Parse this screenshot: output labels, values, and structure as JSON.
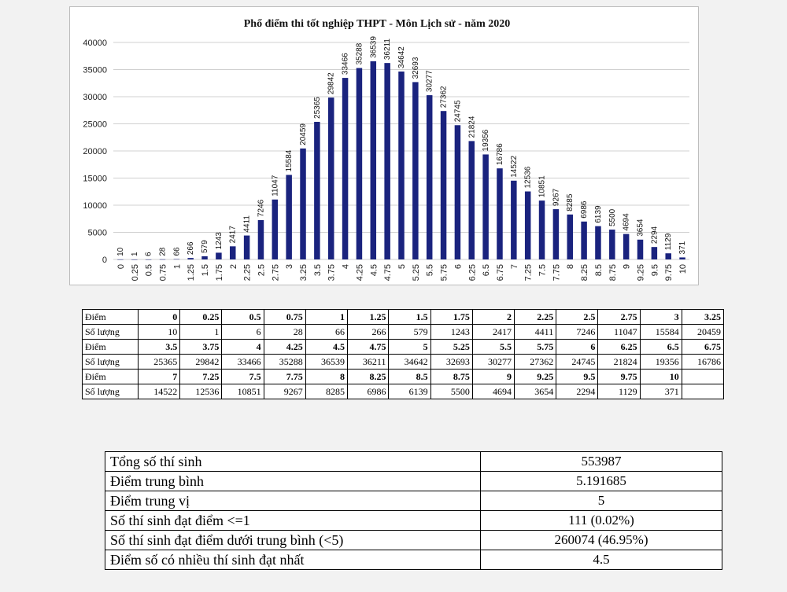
{
  "chart_data": {
    "type": "bar",
    "title": "Phổ điểm thi tốt nghiệp THPT - Môn Lịch sử - năm 2020",
    "categories": [
      "0",
      "0.25",
      "0.5",
      "0.75",
      "1",
      "1.25",
      "1.5",
      "1.75",
      "2",
      "2.25",
      "2.5",
      "2.75",
      "3",
      "3.25",
      "3.5",
      "3.75",
      "4",
      "4.25",
      "4.5",
      "4.75",
      "5",
      "5.25",
      "5.5",
      "5.75",
      "6",
      "6.25",
      "6.5",
      "6.75",
      "7",
      "7.25",
      "7.5",
      "7.75",
      "8",
      "8.25",
      "8.5",
      "8.75",
      "9",
      "9.25",
      "9.5",
      "9.75",
      "10"
    ],
    "values": [
      10,
      1,
      6,
      28,
      66,
      266,
      579,
      1243,
      2417,
      4411,
      7246,
      11047,
      15584,
      20459,
      25365,
      29842,
      33466,
      35288,
      36539,
      36211,
      34642,
      32693,
      30277,
      27362,
      24745,
      21824,
      19356,
      16786,
      14522,
      12536,
      10851,
      9267,
      8285,
      6986,
      6139,
      5500,
      4694,
      3654,
      2294,
      1129,
      371
    ],
    "ylim": [
      0,
      40000
    ],
    "yticks": [
      "0",
      "5000",
      "10000",
      "15000",
      "20000",
      "25000",
      "30000",
      "35000",
      "40000"
    ],
    "grid": true,
    "bar_color": "#1a237e"
  },
  "dist_table": {
    "score_label": "Điểm",
    "count_label": "Số lượng",
    "rows": [
      {
        "scores": [
          "0",
          "0.25",
          "0.5",
          "0.75",
          "1",
          "1.25",
          "1.5",
          "1.75",
          "2",
          "2.25",
          "2.5",
          "2.75",
          "3",
          "3.25"
        ],
        "counts": [
          "10",
          "1",
          "6",
          "28",
          "66",
          "266",
          "579",
          "1243",
          "2417",
          "4411",
          "7246",
          "11047",
          "15584",
          "20459"
        ]
      },
      {
        "scores": [
          "3.5",
          "3.75",
          "4",
          "4.25",
          "4.5",
          "4.75",
          "5",
          "5.25",
          "5.5",
          "5.75",
          "6",
          "6.25",
          "6.5",
          "6.75"
        ],
        "counts": [
          "25365",
          "29842",
          "33466",
          "35288",
          "36539",
          "36211",
          "34642",
          "32693",
          "30277",
          "27362",
          "24745",
          "21824",
          "19356",
          "16786"
        ]
      },
      {
        "scores": [
          "7",
          "7.25",
          "7.5",
          "7.75",
          "8",
          "8.25",
          "8.5",
          "8.75",
          "9",
          "9.25",
          "9.5",
          "9.75",
          "10",
          ""
        ],
        "counts": [
          "14522",
          "12536",
          "10851",
          "9267",
          "8285",
          "6986",
          "6139",
          "5500",
          "4694",
          "3654",
          "2294",
          "1129",
          "371",
          ""
        ]
      }
    ]
  },
  "stats": [
    {
      "label": "Tổng số thí sinh",
      "value": "553987"
    },
    {
      "label": "Điểm trung bình",
      "value": "5.191685"
    },
    {
      "label": "Điểm trung vị",
      "value": "5"
    },
    {
      "label": "Số thí sinh đạt điểm <=1",
      "value": "111 (0.02%)"
    },
    {
      "label": "Số thí sinh đạt điểm dưới trung bình (<5)",
      "value": "260074 (46.95%)"
    },
    {
      "label": "Điểm số có nhiều thí sinh đạt nhất",
      "value": "4.5"
    }
  ]
}
